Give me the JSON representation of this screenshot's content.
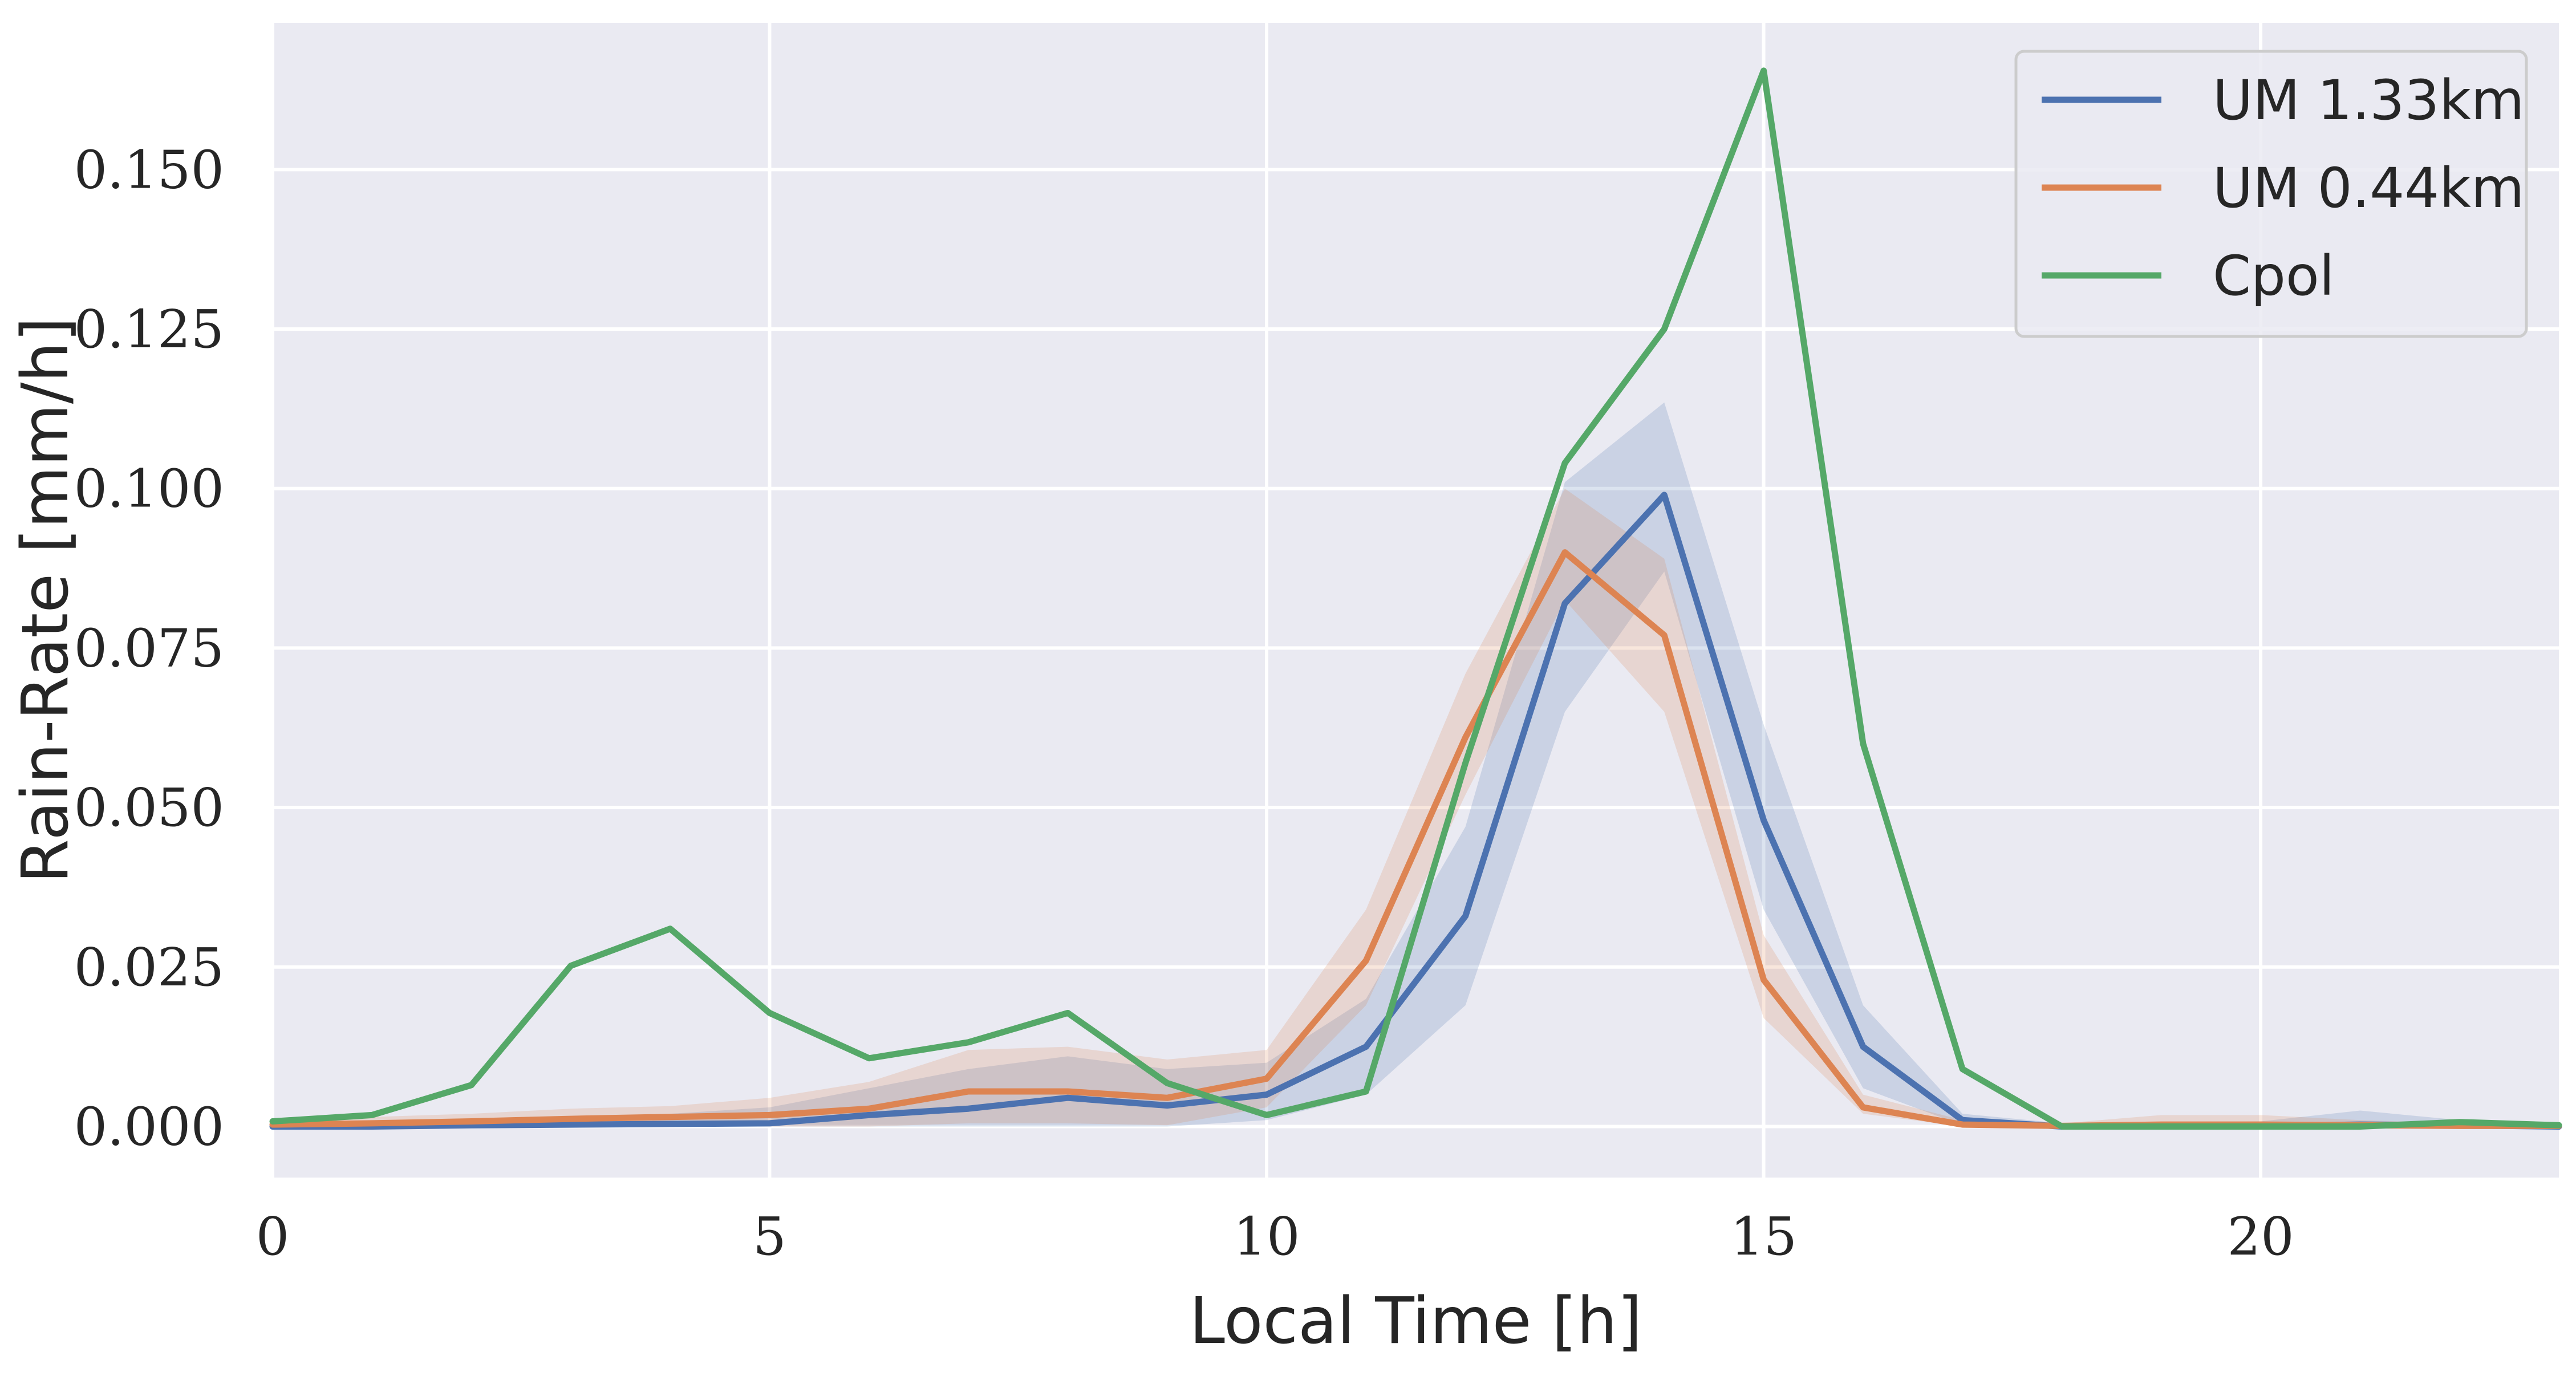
{
  "chart_data": {
    "type": "line",
    "xlabel": "Local Time [h]",
    "ylabel": "Rain-Rate [mm/h]",
    "xlim": [
      0,
      23
    ],
    "ylim": [
      -0.008,
      0.173
    ],
    "xticks": [
      0,
      5,
      10,
      15,
      20
    ],
    "yticks": [
      0.0,
      0.025,
      0.05,
      0.075,
      0.1,
      0.125,
      0.15
    ],
    "ytick_labels": [
      "0.000",
      "0.025",
      "0.050",
      "0.075",
      "0.100",
      "0.125",
      "0.150"
    ],
    "grid": true,
    "legend_position": "upper right",
    "x": [
      0,
      1,
      2,
      3,
      4,
      5,
      6,
      7,
      8,
      9,
      10,
      11,
      12,
      13,
      14,
      15,
      16,
      17,
      18,
      19,
      20,
      21,
      22,
      23
    ],
    "series": [
      {
        "name": "UM 1.33km",
        "color": "#4c72b0",
        "values": [
          0.0,
          0.0,
          0.0002,
          0.0003,
          0.0004,
          0.0005,
          0.0018,
          0.0028,
          0.0045,
          0.0033,
          0.005,
          0.0125,
          0.033,
          0.082,
          0.099,
          0.048,
          0.0125,
          0.001,
          0.0,
          0.0,
          0.0001,
          0.0003,
          0.0002,
          0.0
        ],
        "band_low": [
          0.0,
          0.0,
          0.0,
          0.0,
          0.0,
          0.0,
          0.0,
          0.0,
          0.0,
          0.0,
          0.001,
          0.005,
          0.019,
          0.065,
          0.087,
          0.034,
          0.006,
          0.0002,
          0.0,
          0.0,
          0.0,
          0.0,
          0.0,
          0.0
        ],
        "band_high": [
          0.0005,
          0.0005,
          0.001,
          0.0015,
          0.002,
          0.003,
          0.006,
          0.009,
          0.011,
          0.009,
          0.01,
          0.02,
          0.047,
          0.101,
          0.1135,
          0.063,
          0.019,
          0.002,
          0.0005,
          0.0005,
          0.0008,
          0.0025,
          0.001,
          0.0005
        ]
      },
      {
        "name": "UM 0.44km",
        "color": "#dd8452",
        "values": [
          0.0003,
          0.0005,
          0.0008,
          0.0012,
          0.0015,
          0.0018,
          0.0028,
          0.0055,
          0.0055,
          0.0045,
          0.0075,
          0.026,
          0.061,
          0.09,
          0.077,
          0.023,
          0.003,
          0.0003,
          0.0001,
          0.0003,
          0.0003,
          0.0002,
          0.0001,
          0.0001
        ],
        "band_low": [
          0.0,
          0.0,
          0.0,
          0.0,
          0.0,
          0.0,
          0.0,
          0.0005,
          0.0005,
          0.0002,
          0.003,
          0.019,
          0.052,
          0.0825,
          0.065,
          0.017,
          0.002,
          0.0,
          0.0,
          0.0,
          0.0,
          0.0,
          0.0,
          0.0
        ],
        "band_high": [
          0.001,
          0.0015,
          0.002,
          0.0028,
          0.0032,
          0.0045,
          0.007,
          0.012,
          0.0125,
          0.0105,
          0.012,
          0.034,
          0.071,
          0.1,
          0.089,
          0.03,
          0.005,
          0.001,
          0.0005,
          0.0018,
          0.0018,
          0.001,
          0.0005,
          0.0005
        ]
      },
      {
        "name": "Cpol",
        "color": "#55a868",
        "values": [
          0.0008,
          0.0018,
          0.0065,
          0.0252,
          0.031,
          0.0178,
          0.0107,
          0.0132,
          0.0178,
          0.0068,
          0.0018,
          0.0055,
          0.057,
          0.104,
          0.125,
          0.1655,
          0.06,
          0.009,
          0.0,
          0.0,
          0.0,
          0.0,
          0.0007,
          0.0002
        ]
      }
    ]
  }
}
